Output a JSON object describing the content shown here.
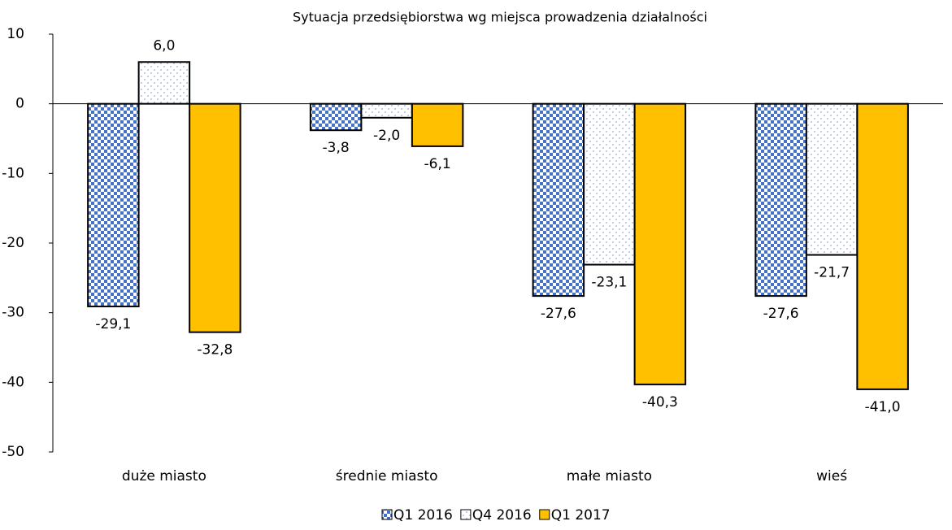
{
  "chart_data": {
    "type": "bar",
    "title": "Sytuacja przedsiębiorstwa wg miejsca prowadzenia działalności",
    "categories": [
      "duże miasto",
      "średnie miasto",
      "małe miasto",
      "wieś"
    ],
    "series": [
      {
        "name": "Q1 2016",
        "color": "#4472c4",
        "pattern": "checker",
        "values": [
          -29.1,
          -3.8,
          -27.6,
          -27.6
        ],
        "value_labels": [
          "-29,1",
          "-3,8",
          "-27,6",
          "-27,6"
        ]
      },
      {
        "name": "Q4 2016",
        "color": "#8faadc",
        "pattern": "dots",
        "values": [
          6.0,
          -2.0,
          -23.1,
          -21.7
        ],
        "value_labels": [
          "6,0",
          "-2,0",
          "-23,1",
          "-21,7"
        ]
      },
      {
        "name": "Q1 2017",
        "color": "#ffc000",
        "pattern": "solid",
        "values": [
          -32.8,
          -6.1,
          -40.3,
          -41.0
        ],
        "value_labels": [
          "-32,8",
          "-6,1",
          "-40,3",
          "-41,0"
        ]
      }
    ],
    "ylim": [
      -50,
      10
    ],
    "yticks": [
      10,
      0,
      -10,
      -20,
      -30,
      -40,
      -50
    ],
    "grid": false,
    "legend": "bottom"
  }
}
